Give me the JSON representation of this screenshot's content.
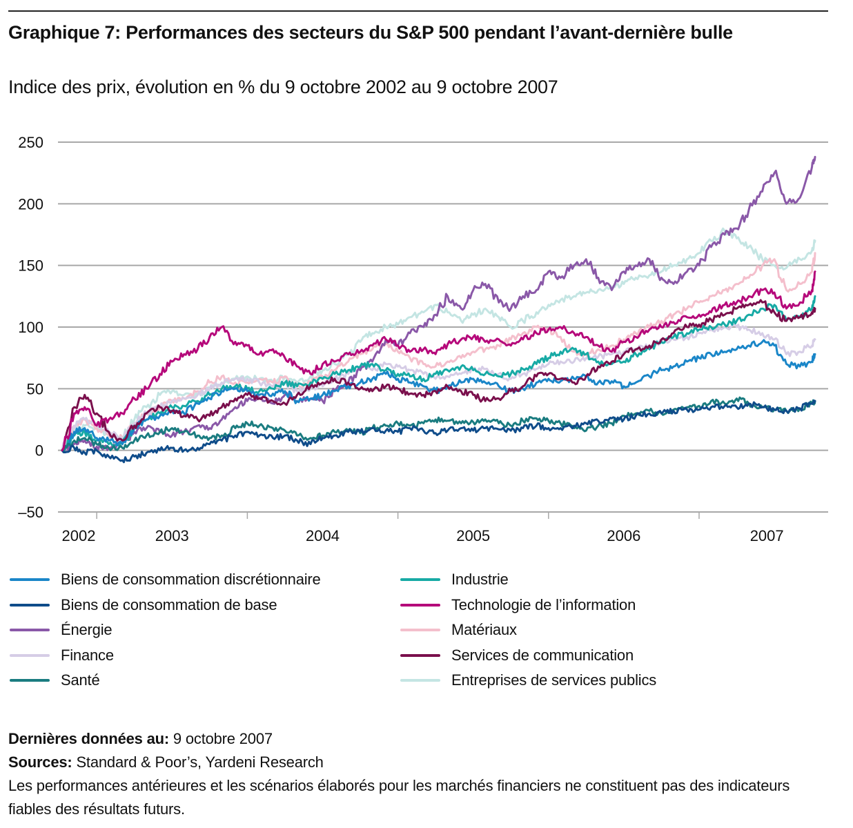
{
  "header": {
    "title": "Graphique 7: Performances des secteurs du S&P 500 pendant l’avant-dernière bulle",
    "subtitle": "Indice des prix, évolution en % du 9 octobre 2002 au 9 octobre 2007"
  },
  "chart_data": {
    "type": "line",
    "title": "Graphique 7: Performances des secteurs du S&P 500 pendant l’avant-dernière bulle",
    "subtitle": "Indice des prix, évolution en % du 9 octobre 2002 au 9 octobre 2007",
    "xlabel": "",
    "ylabel": "",
    "ylim": [
      -50,
      250
    ],
    "xlim": [
      2002.77,
      2007.85
    ],
    "yticks": [
      -50,
      0,
      50,
      100,
      150,
      200,
      250
    ],
    "ytick_labels": [
      "–50",
      "0",
      "50",
      "100",
      "150",
      "200",
      "250"
    ],
    "xtick_positions": [
      2003.0,
      2004.0,
      2005.0,
      2006.0,
      2007.0
    ],
    "year_labels": [
      {
        "label": "2002",
        "x": 2002.88
      },
      {
        "label": "2003",
        "x": 2003.5
      },
      {
        "label": "2004",
        "x": 2004.5
      },
      {
        "label": "2005",
        "x": 2005.5
      },
      {
        "label": "2006",
        "x": 2006.5
      },
      {
        "label": "2007",
        "x": 2007.45
      }
    ],
    "grid": true,
    "legend_position": "bottom",
    "x": [
      2002.77,
      2002.85,
      2002.92,
      2003.0,
      2003.08,
      2003.17,
      2003.25,
      2003.33,
      2003.42,
      2003.5,
      2003.58,
      2003.67,
      2003.75,
      2003.83,
      2003.92,
      2004.0,
      2004.08,
      2004.17,
      2004.25,
      2004.33,
      2004.42,
      2004.5,
      2004.58,
      2004.67,
      2004.75,
      2004.83,
      2004.92,
      2005.0,
      2005.08,
      2005.17,
      2005.25,
      2005.33,
      2005.42,
      2005.5,
      2005.58,
      2005.67,
      2005.75,
      2005.83,
      2005.92,
      2006.0,
      2006.08,
      2006.17,
      2006.25,
      2006.33,
      2006.42,
      2006.5,
      2006.58,
      2006.67,
      2006.75,
      2006.83,
      2006.92,
      2007.0,
      2007.08,
      2007.17,
      2007.25,
      2007.33,
      2007.42,
      2007.5,
      2007.58,
      2007.67,
      2007.75,
      2007.77
    ],
    "series": [
      {
        "name": "Biens de consommation discrétionnaire",
        "color": "#1a86c8",
        "values": [
          0,
          15,
          18,
          10,
          8,
          5,
          18,
          25,
          28,
          32,
          30,
          38,
          42,
          48,
          50,
          48,
          45,
          46,
          48,
          40,
          42,
          45,
          48,
          52,
          55,
          58,
          62,
          58,
          55,
          52,
          48,
          52,
          55,
          58,
          55,
          52,
          48,
          50,
          55,
          58,
          56,
          58,
          60,
          55,
          56,
          52,
          55,
          60,
          65,
          68,
          72,
          75,
          78,
          80,
          82,
          85,
          88,
          85,
          70,
          68,
          72,
          78
        ]
      },
      {
        "name": "Biens de consommation de base",
        "color": "#0f4c8a",
        "values": [
          0,
          2,
          -2,
          0,
          -5,
          -8,
          -5,
          -2,
          0,
          2,
          0,
          2,
          5,
          8,
          12,
          15,
          12,
          10,
          12,
          8,
          5,
          10,
          12,
          15,
          15,
          18,
          16,
          15,
          18,
          16,
          14,
          16,
          18,
          16,
          18,
          17,
          16,
          18,
          20,
          18,
          18,
          20,
          22,
          24,
          26,
          25,
          28,
          30,
          30,
          32,
          33,
          33,
          35,
          36,
          35,
          38,
          35,
          33,
          32,
          34,
          38,
          40
        ]
      },
      {
        "name": "Énergie",
        "color": "#8a58a8",
        "values": [
          0,
          5,
          8,
          3,
          2,
          5,
          15,
          18,
          15,
          12,
          15,
          20,
          18,
          25,
          35,
          40,
          42,
          38,
          45,
          40,
          42,
          40,
          48,
          55,
          65,
          72,
          90,
          85,
          95,
          100,
          110,
          125,
          115,
          130,
          135,
          120,
          115,
          125,
          130,
          145,
          140,
          150,
          155,
          140,
          130,
          145,
          150,
          155,
          140,
          135,
          145,
          150,
          165,
          175,
          180,
          195,
          210,
          225,
          200,
          205,
          230,
          238
        ]
      },
      {
        "name": "Finance",
        "color": "#d6cde6",
        "values": [
          0,
          20,
          25,
          22,
          15,
          10,
          22,
          30,
          35,
          40,
          42,
          45,
          50,
          55,
          58,
          58,
          55,
          52,
          55,
          48,
          50,
          52,
          58,
          62,
          68,
          65,
          70,
          68,
          65,
          62,
          58,
          60,
          62,
          65,
          66,
          62,
          58,
          62,
          66,
          70,
          72,
          72,
          75,
          76,
          78,
          80,
          82,
          85,
          88,
          90,
          92,
          95,
          98,
          100,
          100,
          98,
          95,
          90,
          78,
          80,
          85,
          90
        ]
      },
      {
        "name": "Santé",
        "color": "#1a7c80",
        "values": [
          0,
          8,
          10,
          5,
          2,
          2,
          8,
          12,
          15,
          18,
          15,
          12,
          10,
          12,
          18,
          22,
          20,
          18,
          16,
          12,
          10,
          12,
          15,
          16,
          14,
          18,
          20,
          22,
          20,
          22,
          25,
          24,
          22,
          23,
          25,
          22,
          20,
          24,
          26,
          24,
          22,
          18,
          16,
          20,
          22,
          28,
          30,
          32,
          30,
          33,
          35,
          36,
          40,
          38,
          42,
          38,
          35,
          33,
          32,
          34,
          38,
          40
        ]
      },
      {
        "name": "Industrie",
        "color": "#17aaa5",
        "values": [
          0,
          12,
          15,
          8,
          5,
          5,
          18,
          25,
          30,
          35,
          36,
          40,
          45,
          50,
          52,
          50,
          48,
          50,
          55,
          52,
          55,
          58,
          62,
          65,
          68,
          70,
          65,
          62,
          60,
          58,
          62,
          65,
          68,
          65,
          62,
          60,
          62,
          66,
          70,
          75,
          80,
          82,
          78,
          72,
          70,
          72,
          78,
          82,
          88,
          92,
          95,
          98,
          100,
          102,
          105,
          110,
          115,
          118,
          105,
          108,
          115,
          125
        ]
      },
      {
        "name": "Technologie de l’information",
        "color": "#b5087a",
        "values": [
          0,
          30,
          35,
          20,
          25,
          30,
          42,
          50,
          62,
          72,
          78,
          82,
          92,
          100,
          88,
          85,
          78,
          82,
          75,
          68,
          62,
          70,
          72,
          78,
          80,
          85,
          90,
          85,
          80,
          82,
          78,
          86,
          90,
          92,
          88,
          90,
          85,
          90,
          95,
          98,
          100,
          95,
          92,
          85,
          80,
          88,
          92,
          98,
          100,
          104,
          108,
          110,
          112,
          118,
          120,
          125,
          130,
          128,
          115,
          120,
          130,
          145
        ]
      },
      {
        "name": "Matériaux",
        "color": "#f4bfcc",
        "values": [
          0,
          20,
          25,
          18,
          12,
          10,
          22,
          30,
          35,
          40,
          42,
          48,
          55,
          60,
          55,
          55,
          58,
          55,
          60,
          52,
          55,
          60,
          65,
          72,
          78,
          82,
          86,
          80,
          75,
          70,
          68,
          72,
          75,
          80,
          82,
          85,
          90,
          95,
          100,
          98,
          92,
          80,
          78,
          82,
          85,
          90,
          95,
          100,
          105,
          110,
          115,
          120,
          125,
          130,
          135,
          140,
          150,
          155,
          130,
          135,
          145,
          160
        ]
      },
      {
        "name": "Services de communication",
        "color": "#7a0f4c",
        "values": [
          0,
          35,
          45,
          30,
          15,
          8,
          20,
          30,
          35,
          32,
          28,
          25,
          28,
          35,
          42,
          45,
          42,
          40,
          38,
          45,
          52,
          55,
          58,
          55,
          50,
          48,
          52,
          50,
          46,
          45,
          48,
          52,
          48,
          45,
          40,
          42,
          48,
          52,
          60,
          62,
          58,
          55,
          60,
          68,
          72,
          78,
          82,
          85,
          90,
          95,
          100,
          102,
          106,
          110,
          115,
          118,
          120,
          112,
          105,
          108,
          112,
          115
        ]
      },
      {
        "name": "Entreprises de services publics",
        "color": "#c4e5e3",
        "values": [
          0,
          15,
          20,
          18,
          12,
          10,
          25,
          35,
          45,
          48,
          45,
          45,
          50,
          55,
          58,
          60,
          58,
          55,
          60,
          55,
          60,
          65,
          70,
          78,
          88,
          95,
          100,
          102,
          108,
          112,
          118,
          112,
          105,
          110,
          115,
          108,
          100,
          105,
          112,
          118,
          122,
          125,
          128,
          130,
          132,
          135,
          140,
          142,
          145,
          150,
          155,
          160,
          170,
          178,
          172,
          165,
          155,
          150,
          148,
          155,
          162,
          170
        ]
      }
    ]
  },
  "legend": {
    "items": [
      {
        "label": "Biens de consommation discrétionnaire",
        "color": "#1a86c8"
      },
      {
        "label": "Biens de consommation de base",
        "color": "#0f4c8a"
      },
      {
        "label": "Énergie",
        "color": "#8a58a8"
      },
      {
        "label": "Finance",
        "color": "#d6cde6"
      },
      {
        "label": "Santé",
        "color": "#1a7c80"
      },
      {
        "label": "Industrie",
        "color": "#17aaa5"
      },
      {
        "label": "Technologie de l’information",
        "color": "#b5087a"
      },
      {
        "label": "Matériaux",
        "color": "#f4bfcc"
      },
      {
        "label": "Services de communication",
        "color": "#7a0f4c"
      },
      {
        "label": "Entreprises de services publics",
        "color": "#c4e5e3"
      }
    ]
  },
  "footer": {
    "last_data_label": "Dernières données au:",
    "last_data_value": " 9 octobre 2007",
    "sources_label": "Sources:",
    "sources_value": " Standard & Poor’s, Yardeni Research",
    "disclaimer": "Les performances antérieures et les scénarios élaborés pour les marchés financiers ne constituent pas des indicateurs fiables des résultats futurs."
  }
}
